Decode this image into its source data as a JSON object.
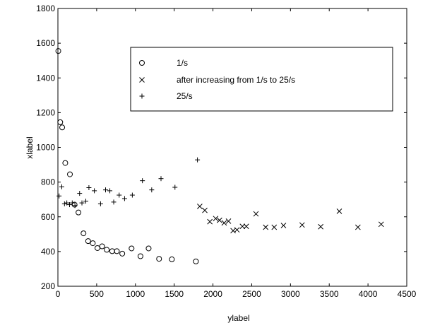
{
  "chart_data": {
    "type": "scatter",
    "title": "",
    "xlabel": "ylabel",
    "ylabel": "xlabel",
    "xlim": [
      0,
      4500
    ],
    "ylim": [
      200,
      1800
    ],
    "xticks": [
      0,
      500,
      1000,
      1500,
      2000,
      2500,
      3000,
      3500,
      4000,
      4500
    ],
    "yticks": [
      200,
      400,
      600,
      800,
      1000,
      1200,
      1400,
      1600,
      1800
    ],
    "grid": false,
    "legend_position": "top-right",
    "series": [
      {
        "name": "1/s",
        "marker": "circle",
        "points": [
          [
            5,
            1555
          ],
          [
            30,
            1145
          ],
          [
            55,
            1115
          ],
          [
            95,
            910
          ],
          [
            155,
            845
          ],
          [
            215,
            670
          ],
          [
            265,
            625
          ],
          [
            330,
            505
          ],
          [
            390,
            460
          ],
          [
            450,
            448
          ],
          [
            510,
            420
          ],
          [
            570,
            430
          ],
          [
            630,
            410
          ],
          [
            700,
            402
          ],
          [
            760,
            402
          ],
          [
            830,
            388
          ],
          [
            950,
            418
          ],
          [
            1065,
            373
          ],
          [
            1170,
            418
          ],
          [
            1305,
            358
          ],
          [
            1470,
            355
          ],
          [
            1780,
            343
          ]
        ]
      },
      {
        "name": "after increasing from 1/s to 25/s",
        "marker": "x",
        "points": [
          [
            1830,
            660
          ],
          [
            1895,
            637
          ],
          [
            1960,
            572
          ],
          [
            2035,
            590
          ],
          [
            2085,
            580
          ],
          [
            2145,
            565
          ],
          [
            2200,
            575
          ],
          [
            2260,
            520
          ],
          [
            2310,
            525
          ],
          [
            2380,
            545
          ],
          [
            2430,
            545
          ],
          [
            2555,
            617
          ],
          [
            2680,
            540
          ],
          [
            2790,
            540
          ],
          [
            2910,
            550
          ],
          [
            3150,
            553
          ],
          [
            3390,
            543
          ],
          [
            3630,
            632
          ],
          [
            3870,
            540
          ],
          [
            4170,
            557
          ]
        ]
      },
      {
        "name": "25/s",
        "marker": "plus",
        "points": [
          [
            15,
            720
          ],
          [
            50,
            773
          ],
          [
            85,
            675
          ],
          [
            115,
            680
          ],
          [
            150,
            670
          ],
          [
            185,
            680
          ],
          [
            220,
            665
          ],
          [
            280,
            735
          ],
          [
            310,
            680
          ],
          [
            360,
            690
          ],
          [
            400,
            768
          ],
          [
            470,
            750
          ],
          [
            550,
            675
          ],
          [
            615,
            755
          ],
          [
            670,
            750
          ],
          [
            720,
            685
          ],
          [
            790,
            725
          ],
          [
            860,
            705
          ],
          [
            960,
            725
          ],
          [
            1090,
            808
          ],
          [
            1210,
            755
          ],
          [
            1330,
            820
          ],
          [
            1510,
            770
          ],
          [
            1800,
            928
          ]
        ]
      }
    ]
  }
}
